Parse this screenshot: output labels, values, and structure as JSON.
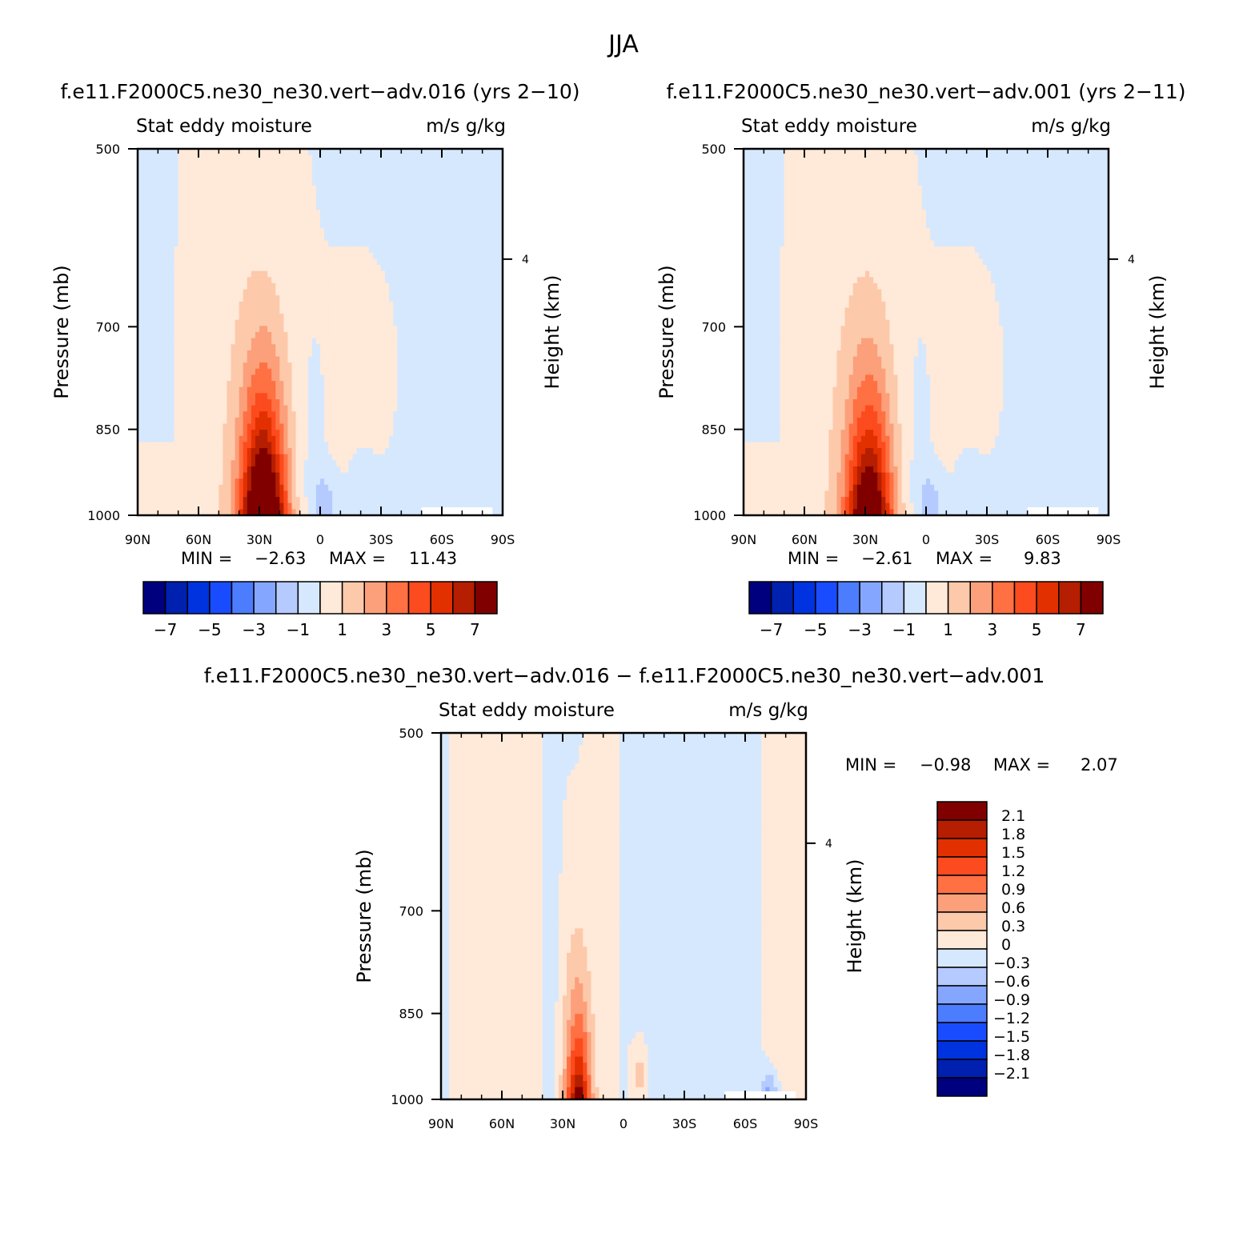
{
  "main_title": "JJA",
  "panels": [
    {
      "title": "f.e11.F2000C5.ne30_ne30.vert−adv.016 (yrs 2−10)",
      "left_string": "Stat eddy moisture",
      "right_string": "m/s g/kg",
      "ylabel": "Pressure (mb)",
      "ylabel_right": "Height (km)",
      "stats": {
        "min_label": "MIN =",
        "min": "−2.63",
        "max_label": "MAX =",
        "max": "11.43"
      }
    },
    {
      "title": "f.e11.F2000C5.ne30_ne30.vert−adv.001 (yrs 2−11)",
      "left_string": "Stat eddy moisture",
      "right_string": "m/s g/kg",
      "ylabel": "Pressure (mb)",
      "ylabel_right": "Height (km)",
      "stats": {
        "min_label": "MIN =",
        "min": "−2.61",
        "max_label": "MAX =",
        "max": "9.83"
      }
    },
    {
      "title": "f.e11.F2000C5.ne30_ne30.vert−adv.016 − f.e11.F2000C5.ne30_ne30.vert−adv.001",
      "left_string": "Stat eddy moisture",
      "right_string": "m/s g/kg",
      "ylabel": "Pressure (mb)",
      "ylabel_right": "Height (km)",
      "stats": {
        "min_label": "MIN =",
        "min": "−0.98",
        "max_label": "MAX =",
        "max": "2.07"
      }
    }
  ],
  "chart_data": [
    {
      "type": "heatmap",
      "title": "f.e11.F2000C5.ne30_ne30.vert−adv.016 (yrs 2−10)",
      "xlabel": "",
      "ylabel": "Pressure (mb)",
      "x_ticks": [
        "90N",
        "60N",
        "30N",
        "0",
        "30S",
        "60S",
        "90S"
      ],
      "x_range": [
        90,
        -90
      ],
      "y_ticks": [
        500,
        700,
        850,
        1000
      ],
      "y_range": [
        1000,
        500
      ],
      "y_scale": "log",
      "y2_label": "Height (km)",
      "y2_ticks": [
        4
      ],
      "colorbar_ticks": [
        "−7",
        "−5",
        "−3",
        "−1",
        "1",
        "3",
        "5",
        "7"
      ],
      "colorbar_levels": [
        -7,
        -6,
        -5,
        -4,
        -3,
        -2,
        -1,
        0,
        1,
        2,
        3,
        4,
        5,
        6,
        7
      ],
      "colors": [
        "#00007f",
        "#0020b0",
        "#0033e0",
        "#1a4cff",
        "#4d7dff",
        "#85a6ff",
        "#b5caff",
        "#d6e8fd",
        "#ffe9d9",
        "#fdc9ab",
        "#fba07a",
        "#ff7043",
        "#fc4b1e",
        "#e23000",
        "#b51e00",
        "#800000"
      ],
      "min": -2.63,
      "max": 11.43,
      "features": [
        {
          "kind": "max",
          "lat": 28,
          "p": 950,
          "value": 11.43
        },
        {
          "kind": "min",
          "lat": -2,
          "p": 985,
          "value": -2.63
        }
      ]
    },
    {
      "type": "heatmap",
      "title": "f.e11.F2000C5.ne30_ne30.vert−adv.001 (yrs 2−11)",
      "xlabel": "",
      "ylabel": "Pressure (mb)",
      "x_ticks": [
        "90N",
        "60N",
        "30N",
        "0",
        "30S",
        "60S",
        "90S"
      ],
      "x_range": [
        90,
        -90
      ],
      "y_ticks": [
        500,
        700,
        850,
        1000
      ],
      "y_range": [
        1000,
        500
      ],
      "y_scale": "log",
      "y2_label": "Height (km)",
      "y2_ticks": [
        4
      ],
      "colorbar_ticks": [
        "−7",
        "−5",
        "−3",
        "−1",
        "1",
        "3",
        "5",
        "7"
      ],
      "colorbar_levels": [
        -7,
        -6,
        -5,
        -4,
        -3,
        -2,
        -1,
        0,
        1,
        2,
        3,
        4,
        5,
        6,
        7
      ],
      "colors": [
        "#00007f",
        "#0020b0",
        "#0033e0",
        "#1a4cff",
        "#4d7dff",
        "#85a6ff",
        "#b5caff",
        "#d6e8fd",
        "#ffe9d9",
        "#fdc9ab",
        "#fba07a",
        "#ff7043",
        "#fc4b1e",
        "#e23000",
        "#b51e00",
        "#800000"
      ],
      "min": -2.61,
      "max": 9.83,
      "features": [
        {
          "kind": "max",
          "lat": 28,
          "p": 950,
          "value": 9.83
        },
        {
          "kind": "min",
          "lat": -2,
          "p": 985,
          "value": -2.61
        }
      ]
    },
    {
      "type": "heatmap",
      "title": "f.e11.F2000C5.ne30_ne30.vert−adv.016 − f.e11.F2000C5.ne30_ne30.vert−adv.001",
      "xlabel": "",
      "ylabel": "Pressure (mb)",
      "x_ticks": [
        "90N",
        "60N",
        "30N",
        "0",
        "30S",
        "60S",
        "90S"
      ],
      "x_range": [
        90,
        -90
      ],
      "y_ticks": [
        500,
        700,
        850,
        1000
      ],
      "y_range": [
        1000,
        500
      ],
      "y_scale": "log",
      "y2_label": "Height (km)",
      "y2_ticks": [
        4
      ],
      "colorbar_ticks": [
        "2.1",
        "1.8",
        "1.5",
        "1.2",
        "0.9",
        "0.6",
        "0.3",
        "0",
        "−0.3",
        "−0.6",
        "−0.9",
        "−1.2",
        "−1.5",
        "−1.8",
        "−2.1"
      ],
      "colorbar_levels": [
        2.1,
        1.8,
        1.5,
        1.2,
        0.9,
        0.6,
        0.3,
        0,
        -0.3,
        -0.6,
        -0.9,
        -1.2,
        -1.5,
        -1.8,
        -2.1
      ],
      "colors": [
        "#800000",
        "#b51e00",
        "#e23000",
        "#fc4b1e",
        "#ff7043",
        "#fba07a",
        "#fdc9ab",
        "#ffe9d9",
        "#d6e8fd",
        "#b5caff",
        "#85a6ff",
        "#4d7dff",
        "#1a4cff",
        "#0033e0",
        "#0020b0",
        "#00007f"
      ],
      "min": -0.98,
      "max": 2.07,
      "features": [
        {
          "kind": "max",
          "lat": 22,
          "p": 940,
          "value": 2.07
        }
      ]
    }
  ]
}
